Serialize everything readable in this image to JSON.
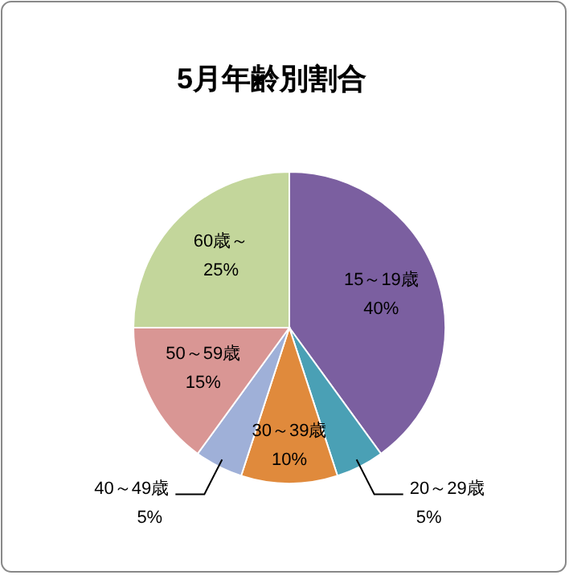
{
  "chart_data": {
    "type": "pie",
    "title": "5月年齢別割合",
    "categories": [
      "15～19歳",
      "20～29歳",
      "30～39歳",
      "40～49歳",
      "50～59歳",
      "60歳～"
    ],
    "values": [
      40,
      5,
      10,
      5,
      15,
      25
    ],
    "value_labels": [
      "40%",
      "5%",
      "10%",
      "5%",
      "15%",
      "25%"
    ],
    "colors": [
      "#7b5fa0",
      "#4aa0b5",
      "#e08a3c",
      "#9fb0d8",
      "#d99694",
      "#c3d69b"
    ]
  }
}
